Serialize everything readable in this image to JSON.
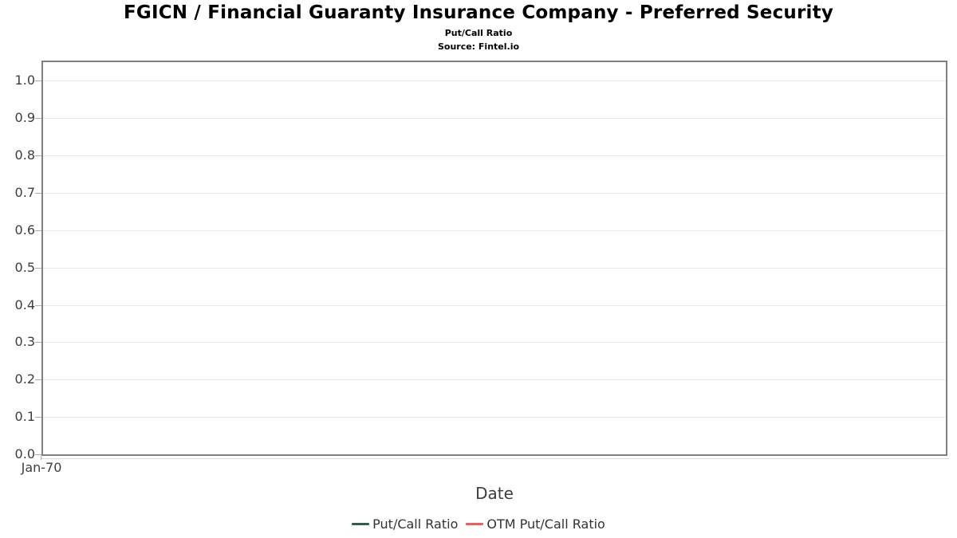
{
  "header": {
    "title": "FGICN / Financial Guaranty Insurance Company - Preferred Security",
    "subtitle": "Put/Call Ratio",
    "source": "Source: Fintel.io"
  },
  "colors": {
    "put_call_line": "#2d5f4b",
    "otm_put_call_line": "#f45a5a",
    "axis_border": "#7f7f7f",
    "gridline": "#e8e8e8",
    "tick_text": "#3d3d3d"
  },
  "chart_data": {
    "type": "line",
    "title": "FGICN / Financial Guaranty Insurance Company - Preferred Security",
    "subtitle": "Put/Call Ratio",
    "source": "Source: Fintel.io",
    "xlabel": "Date",
    "ylabel": "",
    "x_tick_labels": [
      "Jan-70"
    ],
    "y_tick_labels": [
      "0.0",
      "0.1",
      "0.2",
      "0.3",
      "0.4",
      "0.5",
      "0.6",
      "0.7",
      "0.8",
      "0.9",
      "1.0"
    ],
    "ylim": [
      0,
      1.05
    ],
    "grid": true,
    "legend_position": "bottom",
    "series": [
      {
        "name": "Put/Call Ratio",
        "color": "#2d5f4b",
        "x": [],
        "values": []
      },
      {
        "name": "OTM Put/Call Ratio",
        "color": "#f45a5a",
        "x": [],
        "values": []
      }
    ]
  }
}
